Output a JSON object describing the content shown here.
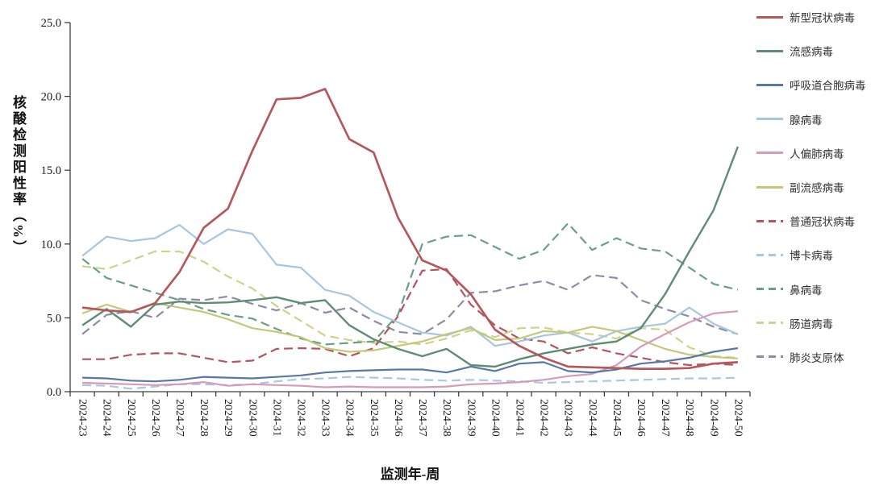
{
  "page": {
    "background": "#ffffff"
  },
  "chart_data": {
    "type": "line",
    "title": "",
    "xlabel": "监测年-周",
    "ylabel": "核酸检测阳性率（%）",
    "ylim": [
      0,
      25
    ],
    "ytick_labels": [
      "0.0",
      "5.0",
      "10.0",
      "15.0",
      "20.0",
      "25.0"
    ],
    "grid": false,
    "legend_position": "right",
    "categories": [
      "2024-23",
      "2024-24",
      "2024-25",
      "2024-26",
      "2024-27",
      "2024-28",
      "2024-29",
      "2024-30",
      "2024-31",
      "2024-32",
      "2024-33",
      "2024-34",
      "2024-35",
      "2024-36",
      "2024-37",
      "2024-38",
      "2024-39",
      "2024-40",
      "2024-41",
      "2024-42",
      "2024-43",
      "2024-44",
      "2024-45",
      "2024-46",
      "2024-47",
      "2024-48",
      "2024-49",
      "2024-50"
    ],
    "series": [
      {
        "name": "新型冠状病毒",
        "color": "#b4585c",
        "dash": false,
        "width": 2.7,
        "values": [
          5.7,
          5.5,
          5.4,
          6.0,
          8.1,
          11.1,
          12.4,
          16.3,
          19.8,
          19.9,
          20.5,
          17.1,
          16.2,
          11.8,
          8.9,
          8.2,
          6.6,
          4.2,
          3.1,
          2.3,
          1.7,
          1.65,
          1.6,
          1.55,
          1.55,
          1.6,
          1.9,
          2.0
        ]
      },
      {
        "name": "流感病毒",
        "color": "#5f8c74",
        "dash": false,
        "width": 2.4,
        "values": [
          4.5,
          5.6,
          4.4,
          5.9,
          6.1,
          6.0,
          6.05,
          6.2,
          6.4,
          6.0,
          6.2,
          4.5,
          3.55,
          2.9,
          2.4,
          2.9,
          1.8,
          1.7,
          2.2,
          2.6,
          2.9,
          3.2,
          3.4,
          4.3,
          6.6,
          9.5,
          12.3,
          16.6
        ]
      },
      {
        "name": "呼吸道合胞病毒",
        "color": "#5778a8",
        "dash": false,
        "width": 2.2,
        "values": [
          0.95,
          0.9,
          0.75,
          0.7,
          0.8,
          1.0,
          0.95,
          0.9,
          1.0,
          1.1,
          1.3,
          1.4,
          1.45,
          1.5,
          1.5,
          1.3,
          1.7,
          1.4,
          1.9,
          2.0,
          1.4,
          1.3,
          1.5,
          1.9,
          2.05,
          2.3,
          2.7,
          2.95
        ]
      },
      {
        "name": "腺病毒",
        "color": "#a9c6e0",
        "dash": false,
        "width": 2.2,
        "values": [
          9.2,
          10.5,
          10.2,
          10.4,
          11.3,
          10.0,
          11.0,
          10.7,
          8.6,
          8.4,
          6.9,
          6.5,
          5.4,
          4.7,
          4.0,
          3.8,
          4.4,
          3.1,
          3.4,
          3.8,
          4.0,
          3.4,
          4.1,
          4.4,
          4.6,
          5.7,
          4.6,
          3.9
        ]
      },
      {
        "name": "人偏肺病毒",
        "color": "#d79ab8",
        "dash": false,
        "width": 2.2,
        "values": [
          0.6,
          0.55,
          0.5,
          0.45,
          0.5,
          0.65,
          0.4,
          0.5,
          0.45,
          0.4,
          0.3,
          0.35,
          0.3,
          0.3,
          0.3,
          0.35,
          0.5,
          0.55,
          0.65,
          0.8,
          1.05,
          1.2,
          1.8,
          3.05,
          3.9,
          4.7,
          5.3,
          5.45
        ]
      },
      {
        "name": "副流感病毒",
        "color": "#c2c978",
        "dash": false,
        "width": 2.2,
        "values": [
          5.3,
          5.9,
          5.4,
          6.0,
          5.7,
          5.4,
          4.9,
          4.3,
          4.05,
          3.7,
          2.95,
          2.7,
          2.8,
          3.1,
          3.4,
          3.9,
          4.3,
          3.5,
          3.6,
          4.1,
          4.0,
          4.4,
          4.1,
          3.5,
          2.9,
          2.5,
          2.35,
          2.25
        ]
      },
      {
        "name": "普通冠状病毒",
        "color": "#b2555e",
        "dash": true,
        "width": 2.2,
        "values": [
          2.2,
          2.2,
          2.5,
          2.6,
          2.6,
          2.3,
          2.0,
          2.1,
          2.9,
          2.95,
          2.9,
          2.4,
          2.95,
          5.1,
          8.2,
          8.3,
          5.9,
          4.5,
          3.6,
          3.4,
          2.6,
          3.0,
          2.6,
          2.3,
          2.0,
          1.8,
          1.9,
          1.8
        ]
      },
      {
        "name": "博卡病毒",
        "color": "#aac7e2",
        "dash": true,
        "width": 2.2,
        "values": [
          0.45,
          0.4,
          0.2,
          0.35,
          0.5,
          0.5,
          0.45,
          0.5,
          0.7,
          0.85,
          0.9,
          1.0,
          0.95,
          0.9,
          0.8,
          0.75,
          0.8,
          0.75,
          0.7,
          0.6,
          0.65,
          0.7,
          0.75,
          0.8,
          0.85,
          0.9,
          0.9,
          0.95
        ]
      },
      {
        "name": "鼻病毒",
        "color": "#6b9e88",
        "dash": true,
        "width": 2.2,
        "values": [
          9.0,
          7.7,
          7.2,
          6.7,
          6.2,
          5.6,
          5.2,
          4.95,
          4.25,
          3.6,
          3.2,
          3.3,
          3.4,
          5.2,
          10.0,
          10.5,
          10.6,
          9.8,
          9.0,
          9.6,
          11.4,
          9.6,
          10.4,
          9.7,
          9.5,
          8.4,
          7.3,
          6.9
        ]
      },
      {
        "name": "肠道病毒",
        "color": "#cdd38a",
        "dash": true,
        "width": 2.2,
        "values": [
          8.5,
          8.3,
          8.9,
          9.5,
          9.5,
          8.8,
          7.8,
          7.0,
          5.8,
          4.8,
          3.8,
          3.5,
          3.3,
          3.4,
          3.2,
          3.6,
          4.15,
          3.7,
          4.3,
          4.35,
          4.0,
          3.9,
          3.6,
          4.3,
          4.2,
          3.0,
          2.4,
          2.3
        ]
      },
      {
        "name": "肺炎支原体",
        "color": "#8e8ba8",
        "dash": true,
        "width": 2.2,
        "values": [
          3.9,
          5.2,
          5.45,
          5.0,
          6.3,
          6.2,
          6.45,
          5.95,
          5.5,
          6.0,
          5.35,
          5.7,
          4.8,
          4.05,
          3.9,
          4.9,
          6.7,
          6.8,
          7.2,
          7.5,
          6.9,
          7.9,
          7.7,
          6.2,
          5.6,
          5.1,
          4.4,
          3.9
        ]
      }
    ]
  }
}
